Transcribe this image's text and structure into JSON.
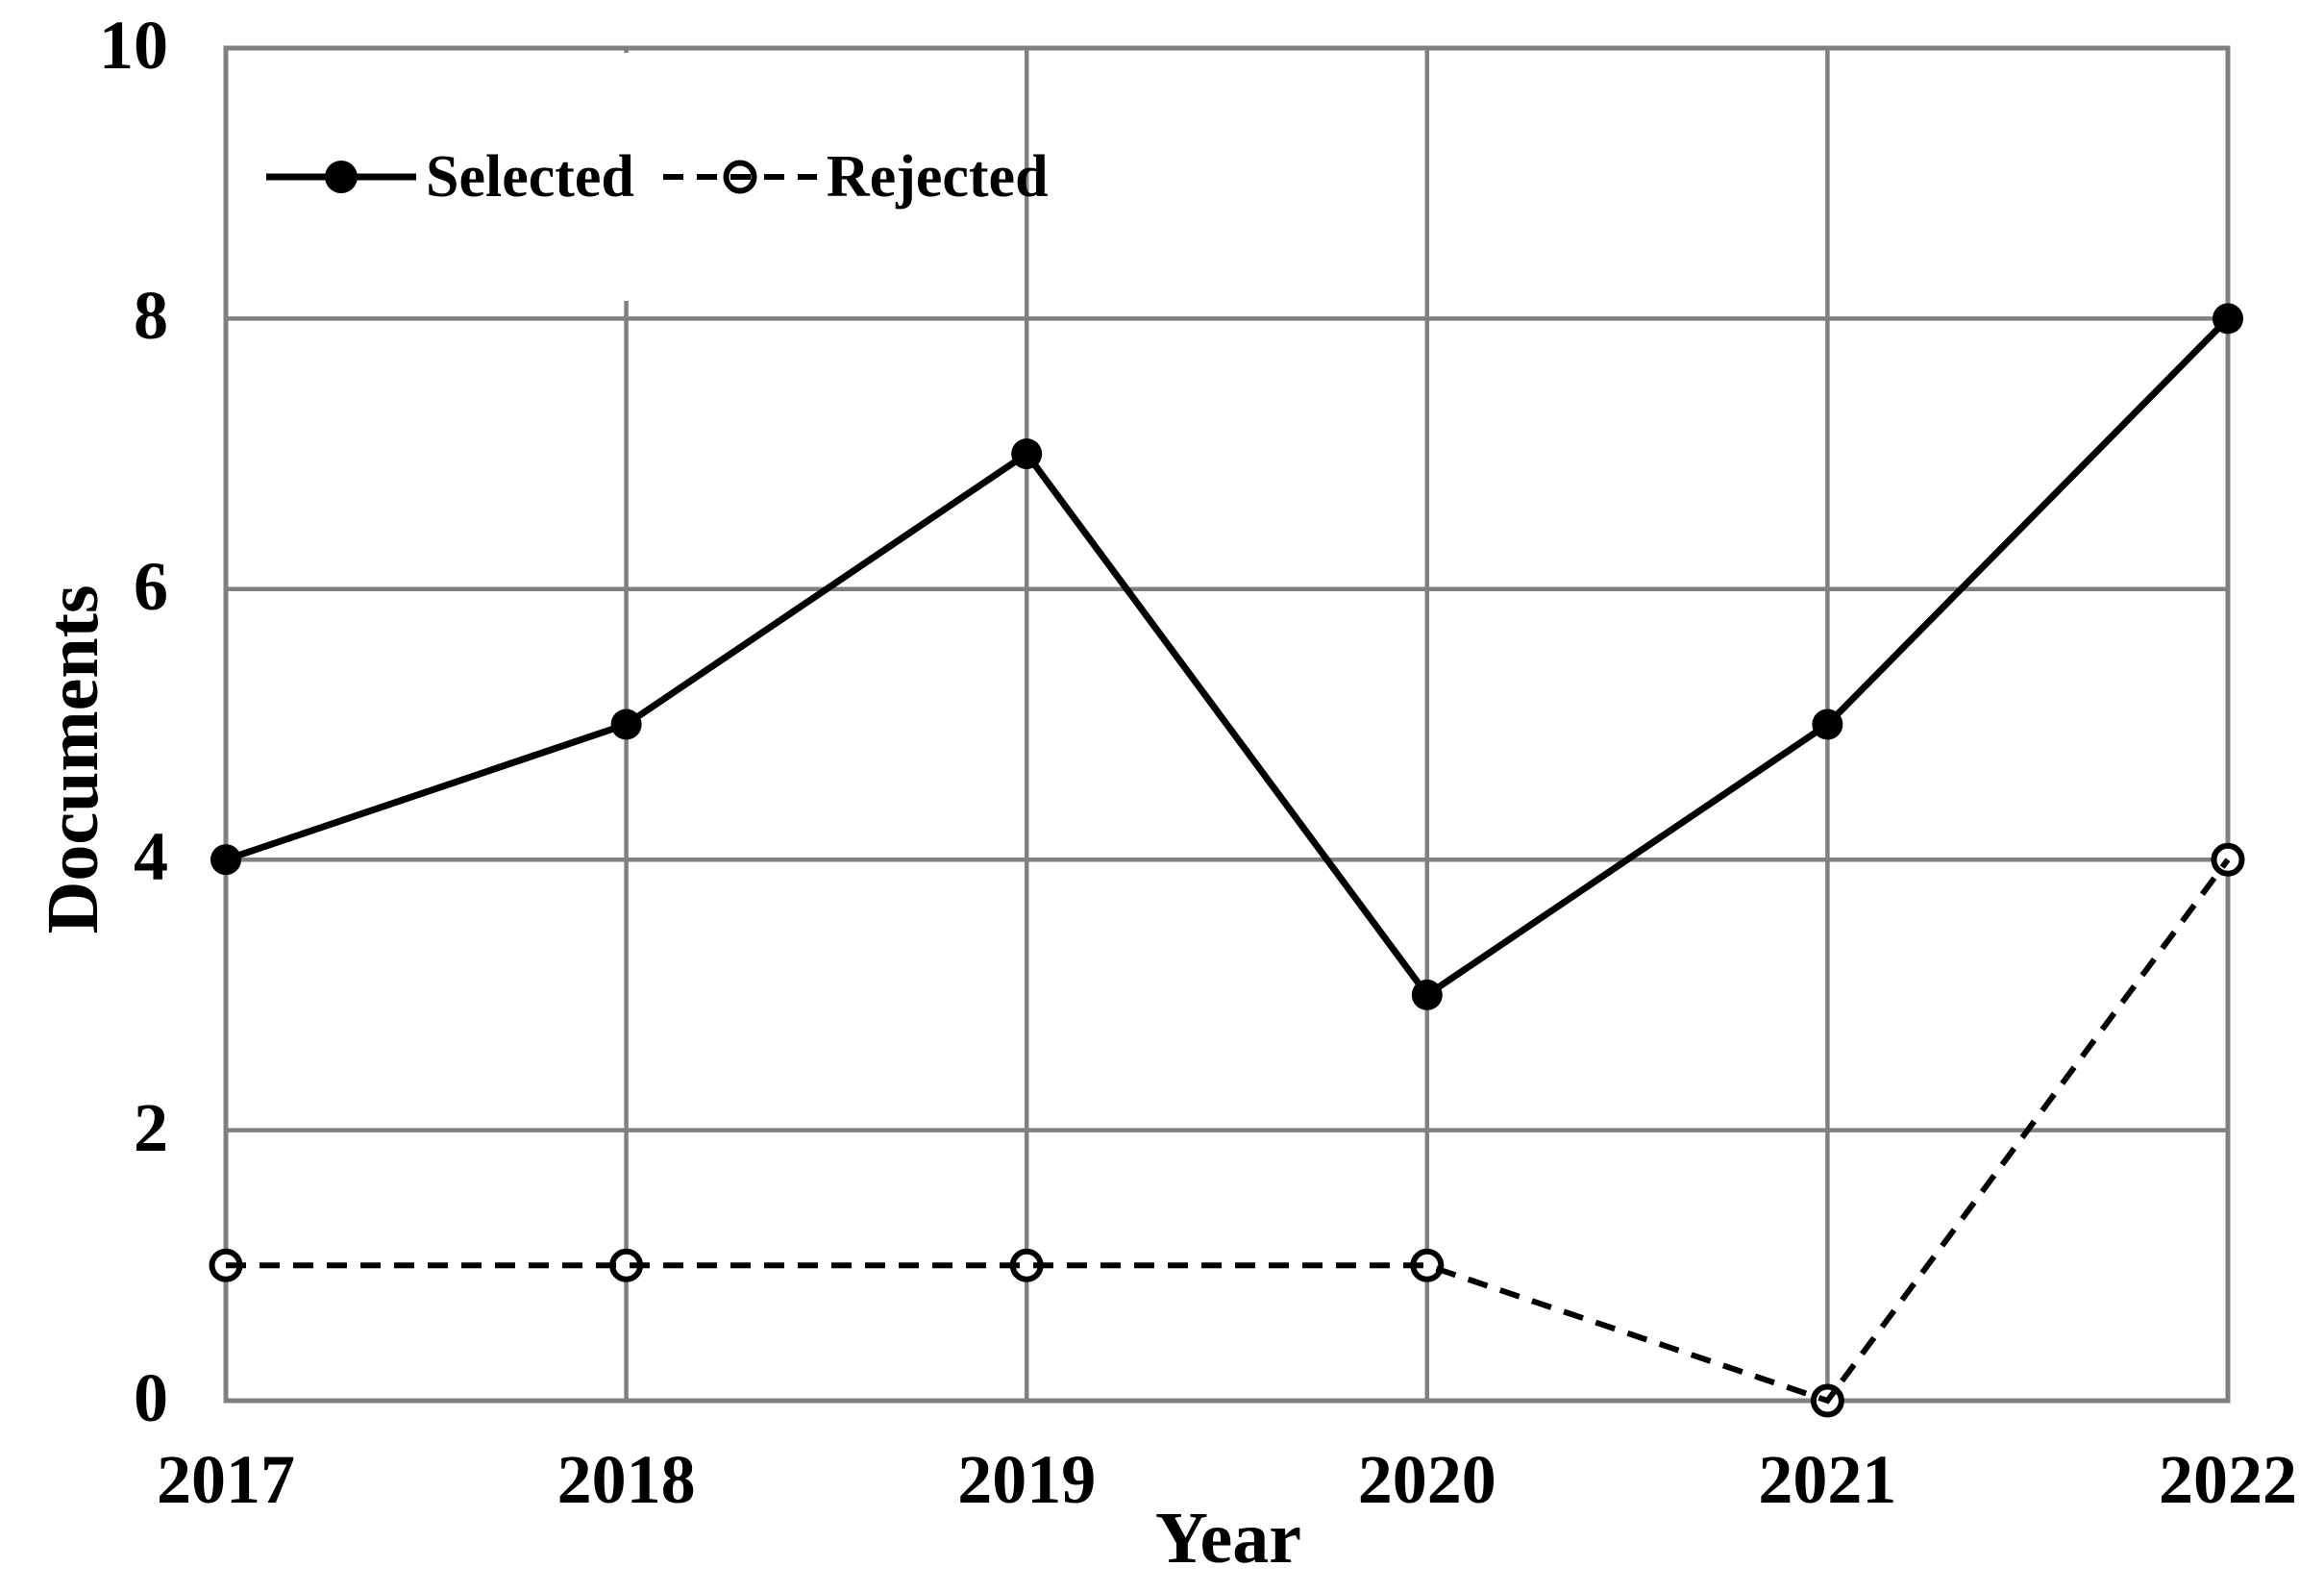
{
  "figure": {
    "background_color": "#ffffff",
    "grid_color": "#808080",
    "series_color": "#000000",
    "text_color": "#000000"
  },
  "chart_data": {
    "type": "line",
    "title": "",
    "xlabel": "Year",
    "ylabel": "Documents",
    "x_categories": [
      "2017",
      "2018",
      "2019",
      "2020",
      "2021",
      "2022"
    ],
    "ylim": [
      0,
      10
    ],
    "yticks": [
      0,
      2,
      4,
      6,
      8,
      10
    ],
    "grid": true,
    "legend_position": "inside-top-left",
    "series": [
      {
        "name": "Selected",
        "values": [
          4,
          5,
          7,
          3,
          5,
          8
        ],
        "line_style": "solid",
        "marker": "filled-circle"
      },
      {
        "name": "Rejected",
        "values": [
          1,
          1,
          1,
          1,
          0,
          4
        ],
        "line_style": "dashed",
        "marker": "open-circle"
      }
    ]
  }
}
